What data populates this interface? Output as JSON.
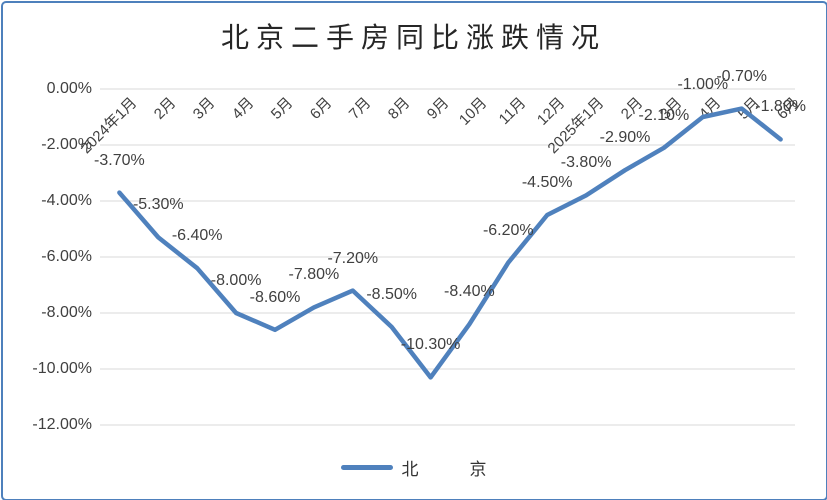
{
  "frame": {
    "border_color": "#4e80bc",
    "background_color": "#ffffff"
  },
  "chart_data": {
    "type": "line",
    "title": "北京二手房同比涨跌情况",
    "categories": [
      "2024年1月",
      "2月",
      "3月",
      "4月",
      "5月",
      "6月",
      "7月",
      "8月",
      "9月",
      "10月",
      "11月",
      "12月",
      "2025年1月",
      "2月",
      "3月",
      "4月",
      "5月",
      "6月"
    ],
    "series": [
      {
        "name": "北京",
        "values": [
          -3.7,
          -5.3,
          -6.4,
          -8.0,
          -8.6,
          -7.8,
          -7.2,
          -8.5,
          -10.3,
          -8.4,
          -6.2,
          -4.5,
          -3.8,
          -2.9,
          -2.1,
          -1.0,
          -0.7,
          -1.8
        ],
        "color": "#4f81bd"
      }
    ],
    "data_labels": [
      "-3.70%",
      "-5.30%",
      "-6.40%",
      "-8.00%",
      "-8.60%",
      "-7.80%",
      "-7.20%",
      "-8.50%",
      "-10.30%",
      "-8.40%",
      "-6.20%",
      "-4.50%",
      "-3.80%",
      "-2.90%",
      "-2.10%",
      "-1.00%",
      "-0.70%",
      "-1.80%"
    ],
    "y_ticks": [
      "0.00%",
      "-2.00%",
      "-4.00%",
      "-6.00%",
      "-8.00%",
      "-10.00%",
      "-12.00%"
    ],
    "ylim": [
      -12,
      0
    ],
    "y_tick_step": 2,
    "grid": true,
    "grid_color": "#d9d9d9",
    "label_color": "#404040",
    "legend_position": "bottom",
    "legend_label": "北　　　京",
    "xlabel": "",
    "ylabel": ""
  }
}
